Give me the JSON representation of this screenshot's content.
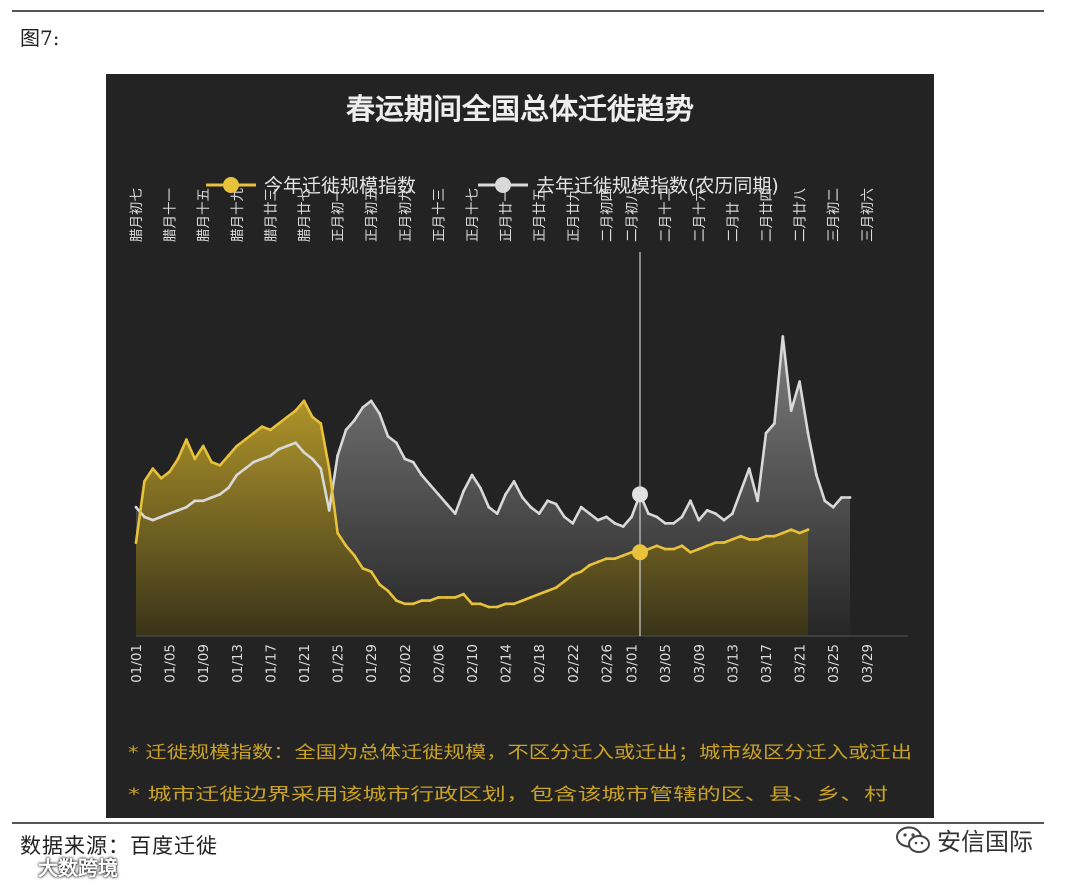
{
  "figure_label": "图7:",
  "source": "数据来源：百度迁徙",
  "brand": {
    "name": "安信国际",
    "icon": "wechat-icon"
  },
  "watermark": "大数跨境",
  "colors": {
    "panel_bg": "#232323",
    "this_year": "#e8c23a",
    "last_year": "#d9d9d9",
    "note_text": "#c9a227",
    "title_text": "#eeeeee"
  },
  "chart_data": {
    "type": "area",
    "title": "春运期间全国总体迁徙趋势",
    "legend": [
      {
        "name": "今年迁徙规模指数",
        "color": "#e8c23a"
      },
      {
        "name": "去年迁徙规模指数(农历同期)",
        "color": "#d9d9d9"
      }
    ],
    "legend_position": "top",
    "x_ticks": [
      "01/01",
      "01/05",
      "01/09",
      "01/13",
      "01/17",
      "01/21",
      "01/25",
      "01/29",
      "02/02",
      "02/06",
      "02/10",
      "02/14",
      "02/18",
      "02/22",
      "02/26",
      "03/01",
      "03/05",
      "03/09",
      "03/13",
      "03/17",
      "03/21",
      "03/25",
      "03/29"
    ],
    "lunar_ticks": [
      "腊月初七",
      "腊月十一",
      "腊月十五",
      "腊月十九",
      "腊月廿三",
      "腊月廿七",
      "正月初一",
      "正月初五",
      "正月初九",
      "正月十三",
      "正月十七",
      "正月廿一",
      "正月廿五",
      "正月廿九",
      "二月初四",
      "二月初八",
      "二月十二",
      "二月十六",
      "二月廿",
      "二月廿四",
      "二月廿八",
      "三月初二",
      "三月初六"
    ],
    "marker_date": "03/02",
    "ylim": [
      0,
      1
    ],
    "grid": false,
    "series": [
      {
        "name": "今年迁徙规模指数",
        "x_start": "01/01",
        "values": [
          0.29,
          0.48,
          0.52,
          0.49,
          0.51,
          0.55,
          0.61,
          0.55,
          0.59,
          0.54,
          0.53,
          0.56,
          0.59,
          0.61,
          0.63,
          0.65,
          0.64,
          0.66,
          0.68,
          0.7,
          0.73,
          0.68,
          0.66,
          0.52,
          0.32,
          0.28,
          0.25,
          0.21,
          0.2,
          0.16,
          0.14,
          0.11,
          0.1,
          0.1,
          0.11,
          0.11,
          0.12,
          0.12,
          0.12,
          0.13,
          0.1,
          0.1,
          0.09,
          0.09,
          0.1,
          0.1,
          0.11,
          0.12,
          0.13,
          0.14,
          0.15,
          0.17,
          0.19,
          0.2,
          0.22,
          0.23,
          0.24,
          0.24,
          0.25,
          0.26,
          0.26,
          0.27,
          0.28,
          0.27,
          0.27,
          0.28,
          0.26,
          0.27,
          0.28,
          0.29,
          0.29,
          0.3,
          0.31,
          0.3,
          0.3,
          0.31,
          0.31,
          0.32,
          0.33,
          0.32,
          0.33
        ]
      },
      {
        "name": "去年迁徙规模指数(农历同期)",
        "x_start": "01/01",
        "values": [
          0.4,
          0.37,
          0.36,
          0.37,
          0.38,
          0.39,
          0.4,
          0.42,
          0.42,
          0.43,
          0.44,
          0.46,
          0.5,
          0.52,
          0.54,
          0.55,
          0.56,
          0.58,
          0.59,
          0.6,
          0.57,
          0.55,
          0.52,
          0.39,
          0.56,
          0.64,
          0.67,
          0.71,
          0.73,
          0.69,
          0.62,
          0.6,
          0.55,
          0.54,
          0.5,
          0.47,
          0.44,
          0.41,
          0.38,
          0.45,
          0.5,
          0.46,
          0.4,
          0.38,
          0.44,
          0.48,
          0.43,
          0.4,
          0.38,
          0.42,
          0.41,
          0.37,
          0.35,
          0.4,
          0.38,
          0.36,
          0.37,
          0.35,
          0.34,
          0.37,
          0.44,
          0.38,
          0.37,
          0.35,
          0.35,
          0.37,
          0.42,
          0.36,
          0.39,
          0.38,
          0.36,
          0.38,
          0.45,
          0.52,
          0.42,
          0.63,
          0.66,
          0.93,
          0.7,
          0.79,
          0.63,
          0.5,
          0.42,
          0.4,
          0.43,
          0.43
        ]
      }
    ],
    "notes": [
      "* 迁徙规模指数：全国为总体迁徙规模，不区分迁入或迁出；城市级区分迁入或迁出",
      "* 城市迁徙边界采用该城市行政区划，包含该城市管辖的区、县、乡、村"
    ]
  }
}
